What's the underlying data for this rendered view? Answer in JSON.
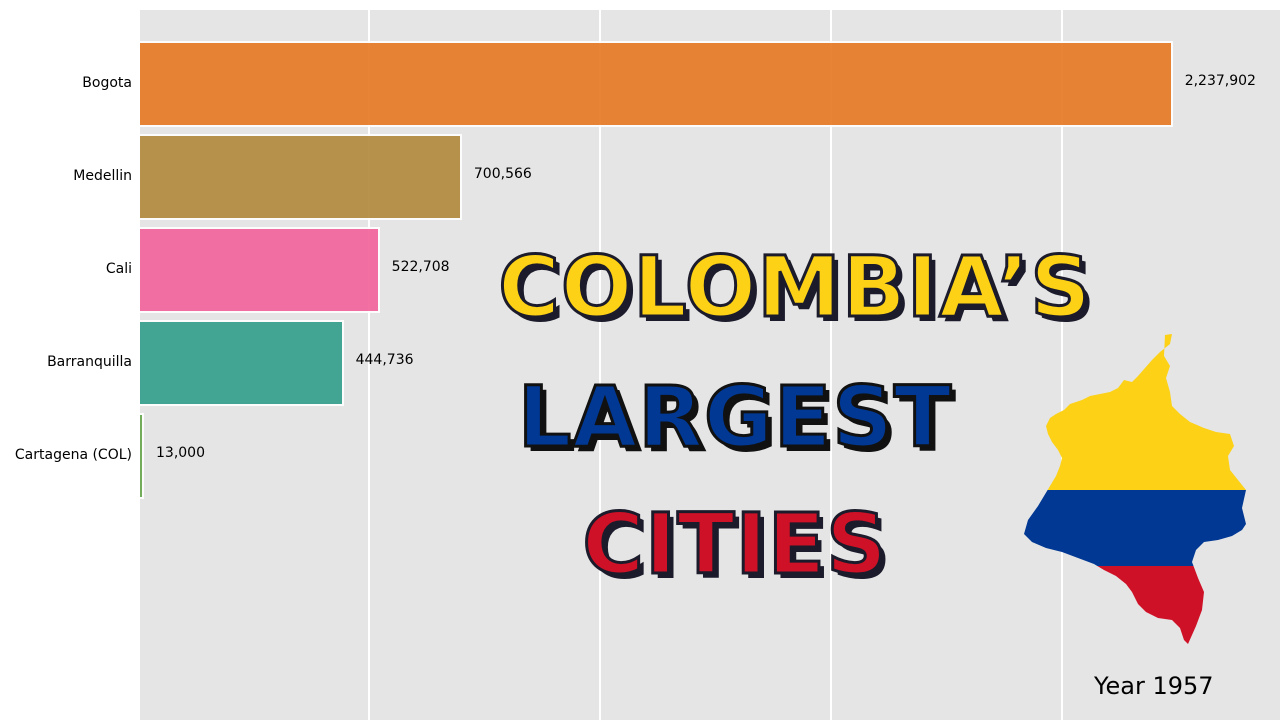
{
  "chart_data": {
    "type": "bar",
    "orientation": "horizontal",
    "categories": [
      "Bogota",
      "Medellin",
      "Cali",
      "Barranquilla",
      "Cartagena (COL)"
    ],
    "values": [
      2237902,
      700566,
      522708,
      444736,
      13000
    ],
    "value_labels": [
      "2,237,902",
      "700,566",
      "522,708",
      "444,736",
      "13,000"
    ],
    "colors": [
      "#e67a25",
      "#b38a3f",
      "#f2649c",
      "#35a08d",
      "#6aa84f"
    ],
    "xlim": [
      0,
      2470000
    ],
    "grid": true
  },
  "overlay": {
    "line1": "COLOMBIA’S",
    "line2": "LARGEST",
    "line3": "CITIES",
    "map_icon": "colombia-map-flag-icon",
    "flag_colors": [
      "#fcd116",
      "#003893",
      "#ce1126"
    ]
  },
  "year_label": "Year 1957"
}
